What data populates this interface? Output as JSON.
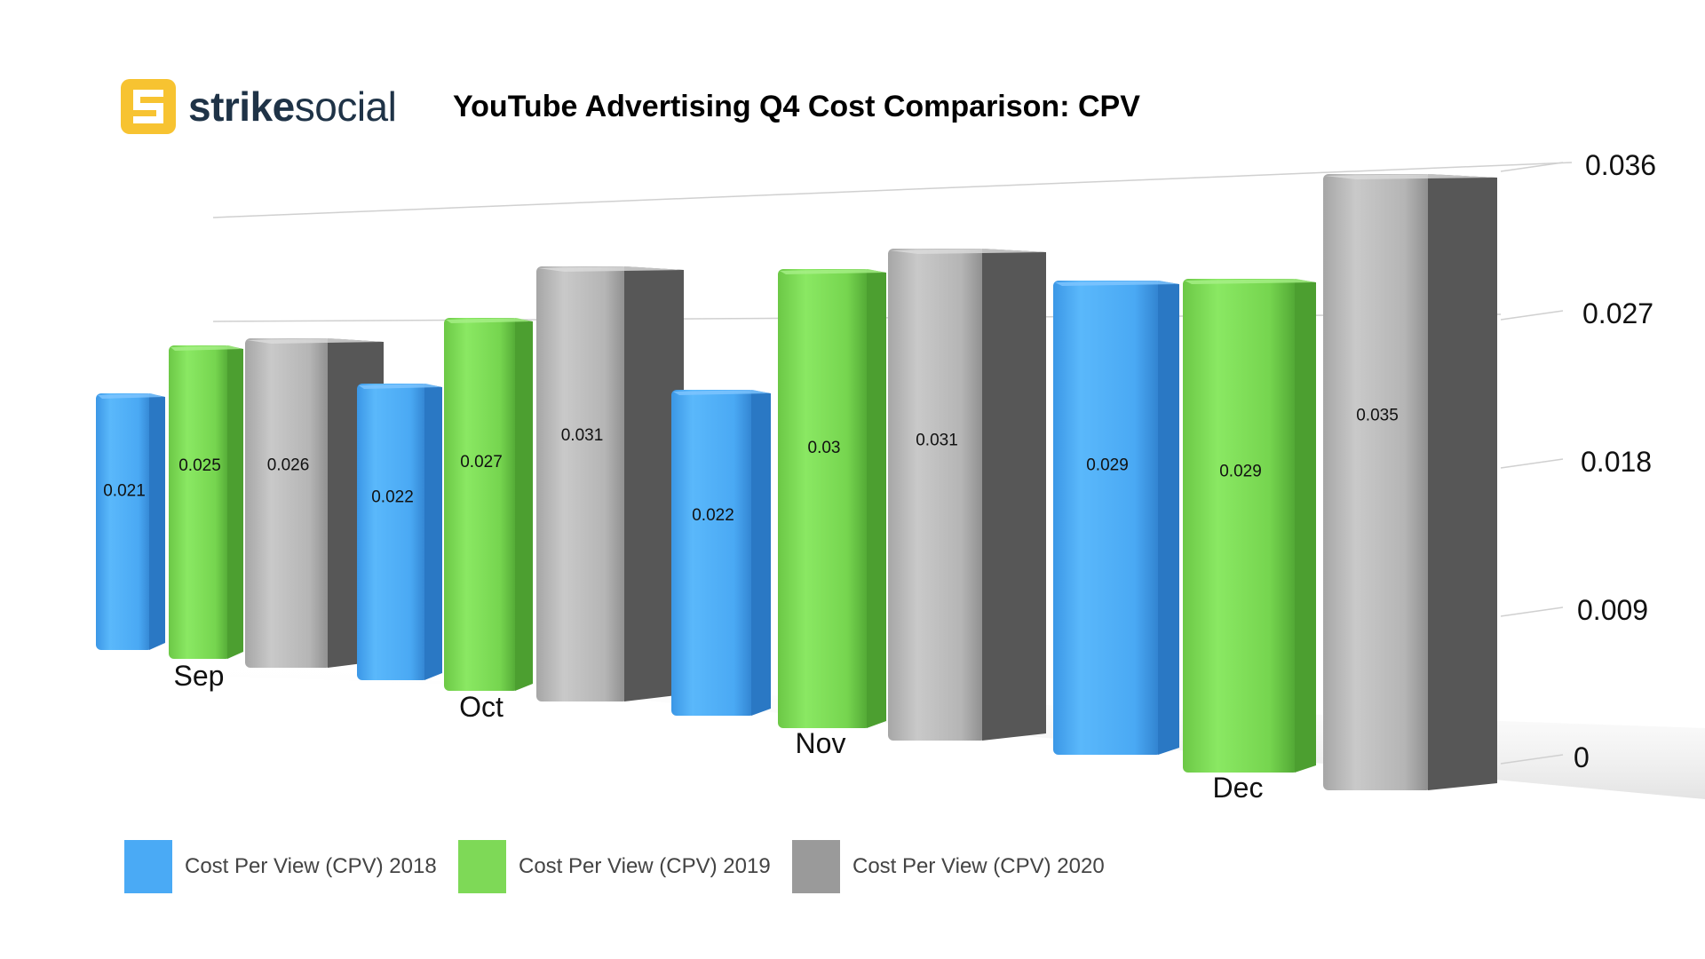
{
  "brand": {
    "name_bold": "strike",
    "name_regular": "social",
    "logo_letter": "S",
    "logo_color": "#f7c331",
    "text_color": "#1f3347"
  },
  "chart_data": {
    "type": "bar",
    "title": "YouTube Advertising Q4 Cost Comparison: CPV",
    "categories": [
      "Sep",
      "Oct",
      "Nov",
      "Dec"
    ],
    "series": [
      {
        "name": "Cost Per View (CPV) 2018",
        "color": "#4aaaf5",
        "values": [
          0.021,
          0.022,
          0.022,
          0.029
        ]
      },
      {
        "name": "Cost Per View (CPV) 2019",
        "color": "#7ed957",
        "values": [
          0.025,
          0.027,
          0.03,
          0.029
        ]
      },
      {
        "name": "Cost Per View (CPV) 2020",
        "color": "#9a9a9a",
        "values": [
          0.026,
          0.031,
          0.031,
          0.035
        ]
      }
    ],
    "ylim": [
      0,
      0.036
    ],
    "yticks": [
      "0",
      "0.009",
      "0.018",
      "0.027",
      "0.036"
    ],
    "grid": true,
    "legend_position": "bottom-left",
    "xlabel": "",
    "ylabel": ""
  }
}
